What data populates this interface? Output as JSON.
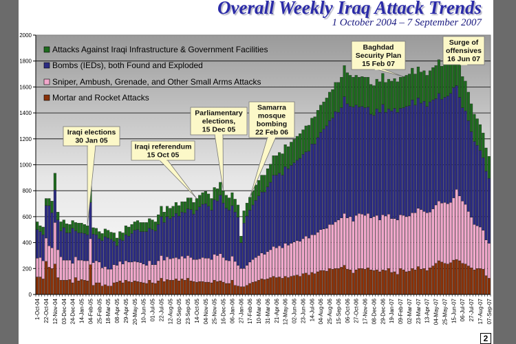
{
  "page": {
    "title": "Overall Weekly Iraq Attack Trends",
    "subtitle": "1 October 2004 – 7 September 2007",
    "page_number": "2"
  },
  "colors": {
    "infrastructure": "#1e6b1e",
    "bombs": "#2b2b82",
    "sniper": "#f2a8cc",
    "mortar": "#8a3209",
    "callout_fill": "#fcf8c8",
    "title": "#2b2ba8"
  },
  "chart_data": {
    "type": "bar",
    "stacked": true,
    "title": "Overall Weekly Iraq Attack Trends",
    "subtitle": "1 October 2004 – 7 September 2007",
    "xlabel": "",
    "ylabel": "",
    "ylim": [
      0,
      2000
    ],
    "yticks": [
      0,
      200,
      400,
      600,
      800,
      1000,
      1200,
      1400,
      1600,
      1800,
      2000
    ],
    "grid": true,
    "legend_position": "top-left",
    "x_tick_every_n_weeks": 3,
    "x_tick_labels": [
      "1-Oct-04",
      "22-Oct-04",
      "12-Nov-04",
      "03-Dec-04",
      "24-Dec-04",
      "14-Jan-05",
      "04-Feb-05",
      "25-Feb-05",
      "18-Mar-05",
      "08-Apr-05",
      "29-Apr-05",
      "20-May-05",
      "10-Jun-05",
      "01-Jul-05",
      "22-Jul-05",
      "12-Aug-05",
      "02-Sep-05",
      "23-Sep-05",
      "14-Oct-05",
      "04-Nov-05",
      "25-Nov-05",
      "16-Dec-05",
      "06-Jan-06",
      "27-Jan-06",
      "17-Feb-06",
      "10-Mar-06",
      "31-Mar-06",
      "21-Apr-06",
      "12-May-06",
      "02-Jun-06",
      "23-Jun-06",
      "14-Jul-06",
      "04-Aug-06",
      "25-Aug-06",
      "15-Sep-06",
      "06-Oct-06",
      "27-Oct-06",
      "17-Nov-06",
      "08-Dec-06",
      "29-Dec-06",
      "19-Jan-07",
      "09-Feb-07",
      "02-Mar-07",
      "23-Mar-07",
      "13-Apr-07",
      "04-May-07",
      "25-May-07",
      "15-Jun-07",
      "06-Jul-07",
      "27-Jul-07",
      "17-Aug-07",
      "07-Sep-07"
    ],
    "series": [
      {
        "name": "Mortar and Rocket Attacks",
        "key": "mortar",
        "values": [
          135,
          135,
          120,
          255,
          210,
          200,
          235,
          130,
          110,
          110,
          110,
          115,
          90,
          130,
          105,
          115,
          110,
          105,
          230,
          70,
          90,
          90,
          65,
          75,
          65,
          65,
          90,
          95,
          105,
          90,
          110,
          100,
          95,
          105,
          100,
          95,
          90,
          85,
          110,
          90,
          85,
          105,
          125,
          100,
          115,
          110,
          110,
          120,
          105,
          120,
          110,
          125,
          105,
          100,
          95,
          100,
          100,
          95,
          95,
          90,
          110,
          100,
          105,
          95,
          85,
          85,
          110,
          70,
          65,
          60,
          60,
          70,
          85,
          95,
          100,
          110,
          120,
          115,
          120,
          130,
          140,
          130,
          135,
          125,
          140,
          130,
          140,
          145,
          150,
          140,
          160,
          165,
          150,
          170,
          160,
          175,
          185,
          185,
          180,
          200,
          195,
          200,
          200,
          210,
          225,
          195,
          190,
          165,
          190,
          200,
          200,
          195,
          205,
          190,
          185,
          190,
          175,
          190,
          185,
          200,
          170,
          175,
          155,
          200,
          190,
          175,
          180,
          200,
          190,
          215,
          195,
          200,
          185,
          205,
          220,
          240,
          260,
          250,
          240,
          235,
          245,
          265,
          270,
          260,
          240,
          235,
          220,
          205,
          190,
          200,
          200,
          195,
          145,
          125
        ]
      },
      {
        "name": "Sniper, Ambush, Grenade, and Other Small Arms Attacks",
        "key": "sniper",
        "values": [
          145,
          150,
          140,
          180,
          165,
          160,
          320,
          215,
          180,
          155,
          155,
          150,
          150,
          160,
          160,
          150,
          150,
          155,
          200,
          175,
          170,
          160,
          140,
          140,
          130,
          130,
          140,
          130,
          150,
          145,
          150,
          150,
          155,
          150,
          150,
          150,
          145,
          140,
          150,
          140,
          145,
          155,
          175,
          165,
          175,
          165,
          170,
          165,
          170,
          175,
          170,
          175,
          180,
          170,
          175,
          175,
          185,
          185,
          185,
          180,
          200,
          200,
          210,
          190,
          180,
          175,
          185,
          185,
          160,
          140,
          140,
          155,
          165,
          175,
          185,
          190,
          200,
          195,
          210,
          215,
          230,
          230,
          240,
          235,
          255,
          250,
          255,
          260,
          265,
          270,
          270,
          285,
          285,
          290,
          300,
          305,
          315,
          320,
          330,
          340,
          345,
          360,
          375,
          380,
          400,
          395,
          410,
          400,
          420,
          425,
          420,
          415,
          420,
          400,
          415,
          420,
          400,
          425,
          420,
          420,
          415,
          410,
          420,
          415,
          420,
          425,
          425,
          430,
          440,
          450,
          460,
          440,
          445,
          430,
          440,
          450,
          460,
          455,
          470,
          465,
          465,
          480,
          540,
          500,
          480,
          460,
          420,
          390,
          350,
          330,
          320,
          300,
          275,
          270
        ]
      },
      {
        "name": "Bombs (IEDs), both Found and Exploded",
        "key": "bombs",
        "values": [
          220,
          200,
          200,
          250,
          310,
          270,
          250,
          230,
          200,
          250,
          210,
          210,
          270,
          200,
          210,
          210,
          210,
          200,
          280,
          220,
          200,
          180,
          210,
          230,
          240,
          230,
          180,
          150,
          170,
          180,
          200,
          200,
          220,
          240,
          250,
          240,
          250,
          260,
          250,
          270,
          260,
          280,
          300,
          290,
          310,
          310,
          320,
          340,
          330,
          340,
          350,
          360,
          370,
          350,
          380,
          400,
          410,
          420,
          400,
          380,
          420,
          420,
          450,
          420,
          400,
          390,
          390,
          380,
          370,
          200,
          350,
          380,
          400,
          420,
          440,
          460,
          470,
          480,
          500,
          520,
          550,
          560,
          560,
          560,
          590,
          590,
          600,
          610,
          620,
          640,
          650,
          650,
          670,
          700,
          700,
          730,
          750,
          770,
          790,
          800,
          820,
          850,
          830,
          850,
          900,
          880,
          850,
          880,
          850,
          820,
          830,
          830,
          820,
          800,
          780,
          820,
          830,
          850,
          800,
          810,
          830,
          850,
          830,
          820,
          830,
          850,
          850,
          870,
          830,
          850,
          820,
          850,
          820,
          850,
          840,
          820,
          830,
          800,
          810,
          830,
          840,
          850,
          800,
          760,
          720,
          720,
          700,
          660,
          640,
          620,
          590,
          560,
          530,
          500
        ]
      },
      {
        "name": "Attacks Against Iraqi Infrastructure & Government Facilities",
        "key": "infrastructure",
        "values": [
          60,
          45,
          60,
          55,
          55,
          90,
          130,
          60,
          70,
          60,
          70,
          65,
          60,
          65,
          75,
          75,
          70,
          70,
          130,
          50,
          50,
          55,
          55,
          60,
          60,
          55,
          65,
          60,
          60,
          60,
          70,
          70,
          70,
          65,
          70,
          70,
          70,
          70,
          75,
          75,
          70,
          75,
          80,
          80,
          80,
          80,
          80,
          85,
          80,
          80,
          85,
          85,
          90,
          90,
          90,
          90,
          90,
          95,
          95,
          90,
          95,
          95,
          100,
          95,
          100,
          95,
          100,
          100,
          95,
          50,
          95,
          100,
          100,
          110,
          120,
          120,
          130,
          130,
          140,
          140,
          150,
          150,
          160,
          165,
          170,
          170,
          180,
          180,
          185,
          190,
          190,
          200,
          200,
          200,
          210,
          210,
          210,
          210,
          215,
          220,
          220,
          225,
          230,
          235,
          240,
          240,
          240,
          230,
          230,
          230,
          230,
          235,
          230,
          230,
          230,
          230,
          235,
          240,
          230,
          230,
          230,
          230,
          235,
          240,
          240,
          240,
          245,
          245,
          240,
          240,
          240,
          235,
          240,
          240,
          250,
          255,
          260,
          255,
          260,
          260,
          250,
          255,
          260,
          250,
          240,
          230,
          220,
          215,
          210,
          205,
          200,
          190,
          180,
          170
        ]
      }
    ],
    "annotations": [
      {
        "text": [
          "Iraqi elections",
          "30 Jan 05"
        ],
        "week_index": 17
      },
      {
        "text": [
          "Iraqi referendum",
          "15 Oct 05"
        ],
        "week_index": 54
      },
      {
        "text": [
          "Parliamentary",
          "elections,",
          "15 Dec 05"
        ],
        "week_index": 63
      },
      {
        "text": [
          "Samarra",
          "mosque",
          "bombing",
          "22 Feb 06"
        ],
        "week_index": 72
      },
      {
        "text": [
          "Baghdad",
          "Security Plan",
          "15 Feb 07"
        ],
        "week_index": 124
      },
      {
        "text": [
          "Surge of",
          "offensives",
          "16 Jun 07"
        ],
        "week_index": 141
      }
    ]
  }
}
